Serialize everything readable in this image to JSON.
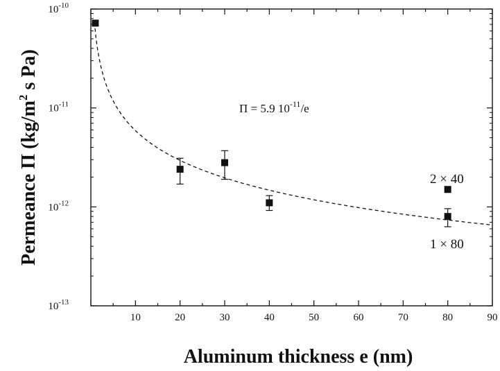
{
  "chart_data": {
    "type": "scatter",
    "xlabel": "Aluminum thickness e (nm)",
    "ylabel": {
      "main": "Permeance Π (kg/m",
      "sup": "2",
      "tail": " s Pa)"
    },
    "xlim": [
      0,
      90
    ],
    "ylim": [
      1e-13,
      1e-10
    ],
    "yscale": "log",
    "x_ticks": [
      10,
      20,
      30,
      40,
      50,
      60,
      70,
      80,
      90
    ],
    "y_ticks": [
      {
        "value": 1e-13,
        "base": "10",
        "exp": "-13"
      },
      {
        "value": 1e-12,
        "base": "10",
        "exp": "-12"
      },
      {
        "value": 1e-11,
        "base": "10",
        "exp": "-11"
      },
      {
        "value": 1e-10,
        "base": "10",
        "exp": "-10"
      }
    ],
    "points": [
      {
        "x": 1,
        "y": 7.2e-11
      },
      {
        "x": 20,
        "y": 2.4e-12,
        "y_low": 1.7e-12,
        "y_high": 3.1e-12
      },
      {
        "x": 30,
        "y": 2.8e-12,
        "y_low": 1.9e-12,
        "y_high": 3.7e-12
      },
      {
        "x": 40,
        "y": 1.1e-12,
        "y_low": 9.2e-13,
        "y_high": 1.3e-12
      },
      {
        "x": 80,
        "y": 1.5e-12
      },
      {
        "x": 80,
        "y": 8e-13,
        "y_low": 6.3e-13,
        "y_high": 9.6e-13
      }
    ],
    "fit": {
      "coef": 5.9e-11,
      "x_from": 0.8,
      "x_to": 90,
      "style": "dashed"
    },
    "equation": {
      "lhs": "Π = 5.9 10",
      "exp": "-11",
      "rhs": "/e"
    },
    "annotations": [
      {
        "text": "2 × 40",
        "x": 80,
        "y": 1.5e-12,
        "position": "above-left"
      },
      {
        "text": "1 × 80",
        "x": 80,
        "y": 8e-13,
        "position": "below-left"
      }
    ]
  }
}
